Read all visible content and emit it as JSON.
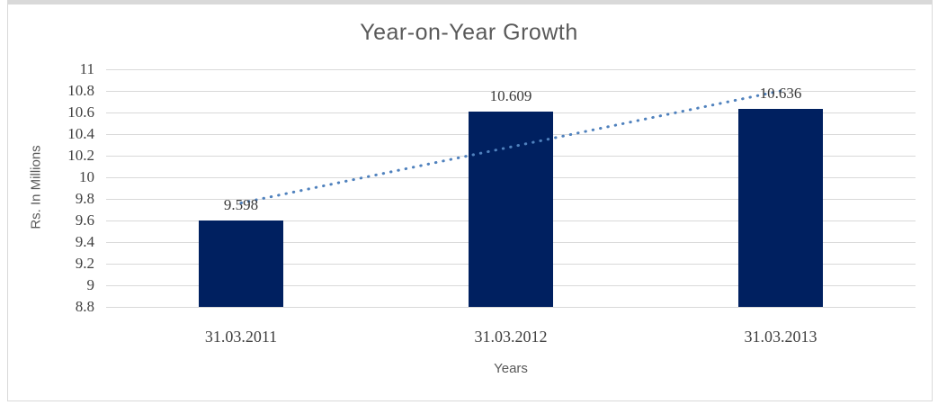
{
  "frame": {
    "border_color": "#d9d9d9"
  },
  "chart_data": {
    "type": "bar",
    "title": "Year-on-Year Growth",
    "xlabel": "Years",
    "ylabel": "Rs. In Millions",
    "categories": [
      "31.03.2011",
      "31.03.2012",
      "31.03.2013"
    ],
    "values": [
      9.598,
      10.609,
      10.636
    ],
    "data_labels": [
      "9.598",
      "10.609",
      "10.636"
    ],
    "ylim": [
      8.8,
      11
    ],
    "ytick_step": 0.2,
    "ytick_labels": [
      "11",
      "10.8",
      "10.6",
      "10.4",
      "10.2",
      "10",
      "9.8",
      "9.6",
      "9.4",
      "9.2",
      "9",
      "8.8"
    ],
    "grid": true,
    "legend": "none",
    "bar_color": "#002060",
    "gridline_color": "#d9d9d9",
    "tick_text_color": "#404040",
    "title_color": "#595959",
    "trendline": {
      "type": "linear",
      "style": "dotted",
      "color": "#4F81BD",
      "start_value": 9.762,
      "end_value": 10.8
    }
  }
}
